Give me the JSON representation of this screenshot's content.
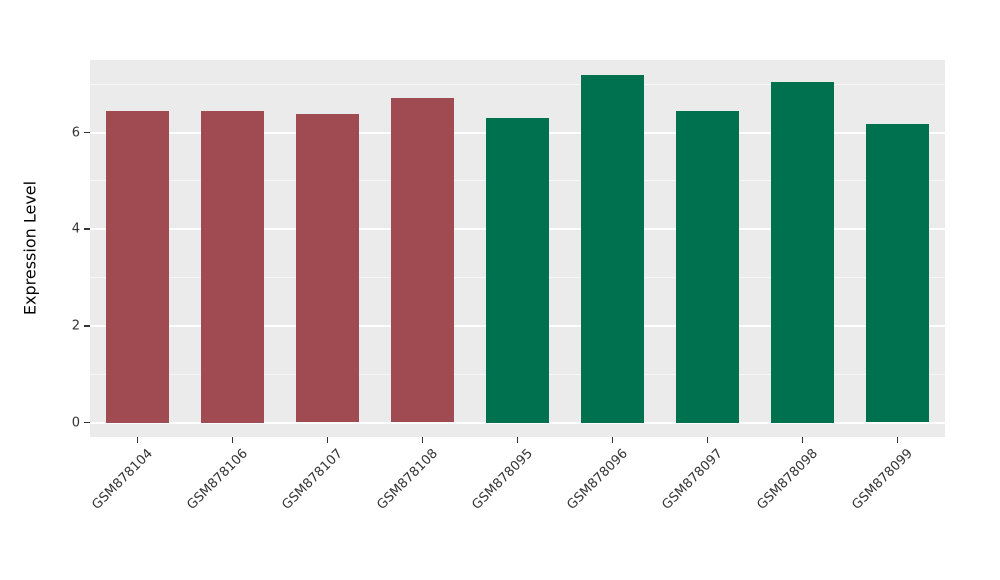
{
  "chart_data": {
    "type": "bar",
    "title": "",
    "xlabel": "",
    "ylabel": "Expression Level",
    "categories": [
      "GSM878104",
      "GSM878106",
      "GSM878107",
      "GSM878108",
      "GSM878095",
      "GSM878096",
      "GSM878097",
      "GSM878098",
      "GSM878099"
    ],
    "values": [
      6.45,
      6.45,
      6.38,
      6.72,
      6.3,
      7.2,
      6.45,
      7.05,
      6.18
    ],
    "colors": [
      "#A04A52",
      "#A04A52",
      "#A04A52",
      "#A04A52",
      "#00714E",
      "#00714E",
      "#00714E",
      "#00714E",
      "#00714E"
    ],
    "group_colors": {
      "red_group": "#A04A52",
      "green_group": "#00714E"
    },
    "ylim": [
      0,
      7.5
    ],
    "yticks": [
      0,
      2,
      4,
      6
    ],
    "yticks_minor": [
      1,
      3,
      5,
      7
    ],
    "grid": "major+minor horizontal",
    "legend": "none",
    "panel_background": "#EBEBEB",
    "grid_color": "#FFFFFF",
    "axis_text_color": "#333333",
    "x_label_angle_deg": 45
  }
}
